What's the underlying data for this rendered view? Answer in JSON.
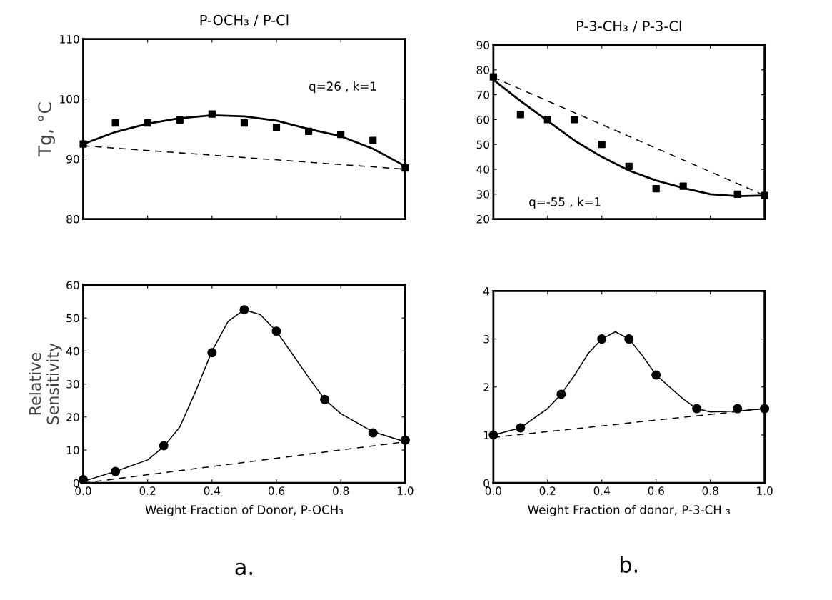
{
  "chart_data": [
    {
      "type": "scatter",
      "title": "P-OCH₃ / P-Cl",
      "ylabel": "Tg, °C",
      "xlim": [
        0,
        1.0
      ],
      "xticks": [
        0,
        0.2,
        0.4,
        0.6,
        0.8,
        1.0
      ],
      "ylim": [
        80,
        110
      ],
      "yticks": [
        80,
        90,
        100,
        110
      ],
      "tick_labels": "y",
      "grid": false,
      "legend": false,
      "annotations": [
        "q=26 , k=1"
      ],
      "series": [
        {
          "marker": "square",
          "color": "#000000",
          "x": [
            0,
            0.1,
            0.2,
            0.3,
            0.4,
            0.5,
            0.6,
            0.7,
            0.8,
            0.9,
            1.0
          ],
          "values": [
            92.5,
            96.0,
            96.0,
            96.5,
            97.5,
            96.0,
            95.3,
            94.6,
            94.1,
            93.1,
            88.5
          ]
        },
        {
          "type": "line",
          "line_style": "solid",
          "color": "#000000",
          "x": [
            0,
            0.1,
            0.2,
            0.3,
            0.4,
            0.5,
            0.6,
            0.7,
            0.8,
            0.9,
            1.0
          ],
          "values": [
            92.5,
            94.5,
            95.9,
            96.8,
            97.3,
            97.1,
            96.4,
            95.0,
            93.8,
            91.7,
            88.8
          ]
        },
        {
          "type": "line",
          "line_style": "dashed",
          "color": "#000000",
          "x": [
            0,
            1.0
          ],
          "values": [
            92.2,
            88.3
          ]
        }
      ]
    },
    {
      "type": "scatter",
      "title": "P-3-CH₃ / P-3-Cl",
      "xlim": [
        0,
        1.0
      ],
      "xticks": [
        0,
        0.2,
        0.4,
        0.6,
        0.8,
        1.0
      ],
      "ylim": [
        20,
        90
      ],
      "yticks": [
        20,
        30,
        40,
        50,
        60,
        70,
        80,
        90
      ],
      "tick_labels": "y",
      "grid": false,
      "legend": false,
      "annotations": [
        "q=-55 , k=1"
      ],
      "series": [
        {
          "marker": "square",
          "color": "#000000",
          "x": [
            0,
            0.1,
            0.2,
            0.3,
            0.4,
            0.5,
            0.6,
            0.7,
            0.9,
            1.0
          ],
          "values": [
            77.2,
            62.0,
            60.0,
            60.0,
            50.0,
            41.2,
            32.2,
            33.2,
            30.0,
            29.5
          ]
        },
        {
          "type": "line",
          "line_style": "solid",
          "color": "#000000",
          "x": [
            0,
            0.1,
            0.2,
            0.3,
            0.4,
            0.5,
            0.6,
            0.7,
            0.8,
            0.9,
            1.0
          ],
          "values": [
            76.0,
            67.5,
            59.5,
            51.5,
            45.0,
            39.5,
            35.5,
            32.5,
            30.0,
            29.2,
            29.5
          ]
        },
        {
          "type": "line",
          "line_style": "dashed",
          "color": "#000000",
          "x": [
            0,
            1.0
          ],
          "values": [
            77.0,
            29.5
          ]
        }
      ]
    },
    {
      "type": "scatter",
      "ylabel": "Relative\nSensitivity",
      "xlabel": "Weight Fraction of Donor, P-OCH₃",
      "xlim": [
        0,
        1.0
      ],
      "xticks": [
        {
          "value": 0,
          "label": "0.0"
        },
        {
          "value": 0.2,
          "label": "0.2"
        },
        {
          "value": 0.4,
          "label": "0.4"
        },
        {
          "value": 0.6,
          "label": "0.6"
        },
        {
          "value": 0.8,
          "label": "0.8"
        },
        {
          "value": 1.0,
          "label": "1.0"
        }
      ],
      "ylim": [
        0,
        60
      ],
      "yticks": [
        0,
        10,
        20,
        30,
        40,
        50,
        60
      ],
      "grid": false,
      "legend": false,
      "annotations": [
        "a."
      ],
      "series": [
        {
          "marker": "circle",
          "color": "#000000",
          "x": [
            0,
            0.1,
            0.25,
            0.4,
            0.5,
            0.6,
            0.75,
            0.9,
            1.0
          ],
          "values": [
            1.0,
            3.5,
            11.3,
            39.5,
            52.5,
            46.0,
            25.3,
            15.2,
            13.0
          ]
        },
        {
          "type": "line",
          "line_style": "solid",
          "color": "#000000",
          "x": [
            0,
            0.1,
            0.2,
            0.25,
            0.3,
            0.35,
            0.4,
            0.45,
            0.5,
            0.55,
            0.6,
            0.65,
            0.7,
            0.75,
            0.8,
            0.9,
            1.0
          ],
          "values": [
            0.5,
            3.5,
            7.0,
            11.0,
            17.0,
            28.0,
            40.0,
            49.0,
            52.5,
            51.0,
            46.0,
            39.0,
            32.0,
            25.3,
            21.0,
            15.5,
            12.5
          ]
        },
        {
          "type": "line",
          "line_style": "dashed",
          "color": "#000000",
          "x": [
            0,
            1.0
          ],
          "values": [
            0.0,
            12.5
          ]
        }
      ]
    },
    {
      "type": "scatter",
      "xlabel": "Weight Fraction of donor, P-3-CH ₃",
      "xlim": [
        0,
        1.0
      ],
      "xticks": [
        {
          "value": 0,
          "label": "0.0"
        },
        {
          "value": 0.2,
          "label": "0.2"
        },
        {
          "value": 0.4,
          "label": "0.4"
        },
        {
          "value": 0.6,
          "label": "0.6"
        },
        {
          "value": 0.8,
          "label": "0.8"
        },
        {
          "value": 1.0,
          "label": "1.0"
        }
      ],
      "ylim": [
        0,
        4
      ],
      "yticks": [
        0,
        1,
        2,
        3,
        4
      ],
      "grid": false,
      "legend": false,
      "annotations": [
        "b."
      ],
      "series": [
        {
          "marker": "circle",
          "color": "#000000",
          "x": [
            0,
            0.1,
            0.25,
            0.4,
            0.5,
            0.6,
            0.75,
            0.9,
            1.0
          ],
          "values": [
            1.0,
            1.15,
            1.85,
            3.0,
            3.0,
            2.25,
            1.55,
            1.55,
            1.55
          ]
        },
        {
          "type": "line",
          "line_style": "solid",
          "color": "#000000",
          "x": [
            0,
            0.1,
            0.2,
            0.25,
            0.3,
            0.35,
            0.4,
            0.45,
            0.5,
            0.55,
            0.6,
            0.7,
            0.75,
            0.8,
            0.9,
            1.0
          ],
          "values": [
            1.0,
            1.15,
            1.55,
            1.85,
            2.25,
            2.7,
            3.0,
            3.15,
            3.0,
            2.65,
            2.25,
            1.75,
            1.55,
            1.48,
            1.5,
            1.55
          ]
        },
        {
          "type": "line",
          "line_style": "dashed",
          "color": "#000000",
          "x": [
            0,
            1.0
          ],
          "values": [
            0.95,
            1.55
          ]
        }
      ]
    }
  ]
}
